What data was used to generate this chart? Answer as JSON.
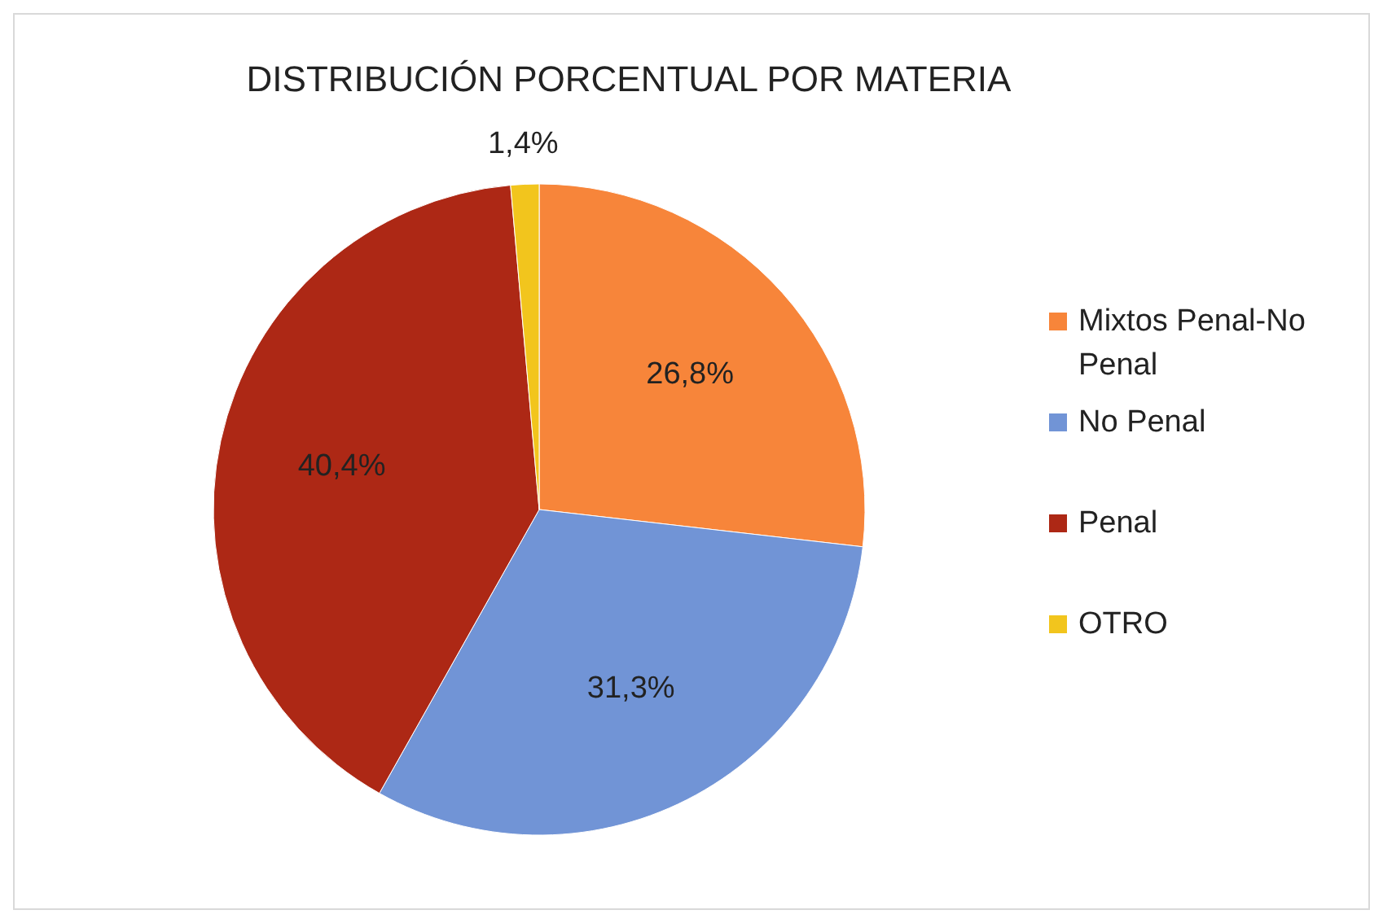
{
  "chart_data": {
    "type": "pie",
    "title": "DISTRIBUCIÓN PORCENTUAL POR MATERIA",
    "categories": [
      "Mixtos Penal-No Penal",
      "No Penal",
      "Penal",
      "OTRO"
    ],
    "values": [
      26.8,
      31.3,
      40.4,
      1.4
    ],
    "value_labels": [
      "26,8%",
      "31,3%",
      "40,4%",
      "1,4%"
    ],
    "colors": [
      "#f7853a",
      "#7194d6",
      "#ad2815",
      "#f2c51d"
    ],
    "legend": "right"
  }
}
